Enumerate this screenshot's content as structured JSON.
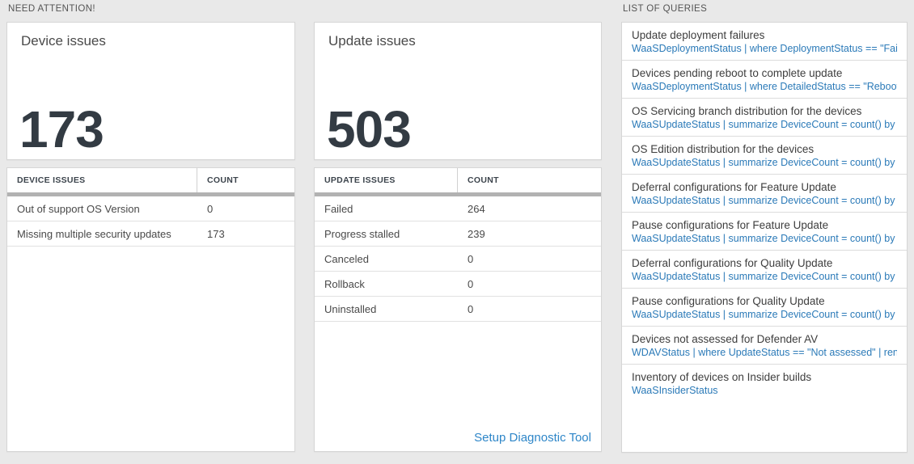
{
  "colors": {
    "setup_link": "#2e86c8",
    "query_link": "#2b7ab8",
    "big_number": "#333b43"
  },
  "need_attention": {
    "heading": "NEED ATTENTION!",
    "device_card": {
      "title": "Device issues",
      "count": "173"
    },
    "device_table": {
      "headers": [
        "DEVICE ISSUES",
        "COUNT"
      ],
      "rows": [
        {
          "label": "Out of support OS Version",
          "count": "0"
        },
        {
          "label": "Missing multiple security updates",
          "count": "173"
        }
      ]
    },
    "update_card": {
      "title": "Update issues",
      "count": "503"
    },
    "update_table": {
      "headers": [
        "UPDATE ISSUES",
        "COUNT"
      ],
      "rows": [
        {
          "label": "Failed",
          "count": "264"
        },
        {
          "label": "Progress stalled",
          "count": "239"
        },
        {
          "label": "Canceled",
          "count": "0"
        },
        {
          "label": "Rollback",
          "count": "0"
        },
        {
          "label": "Uninstalled",
          "count": "0"
        }
      ],
      "footer_link": "Setup Diagnostic Tool"
    }
  },
  "queries": {
    "heading": "LIST OF QUERIES",
    "items": [
      {
        "title": "Update deployment failures",
        "query": "WaaSDeploymentStatus | where DeploymentStatus == \"Failed\" |..."
      },
      {
        "title": "Devices pending reboot to complete update",
        "query": "WaaSDeploymentStatus | where DetailedStatus == \"Reboot pend..."
      },
      {
        "title": "OS Servicing branch distribution for the devices",
        "query": "WaaSUpdateStatus | summarize DeviceCount = count() by OSSer..."
      },
      {
        "title": "OS Edition distribution for the devices",
        "query": "WaaSUpdateStatus | summarize DeviceCount = count() by OSEdit..."
      },
      {
        "title": "Deferral configurations for Feature Update",
        "query": "WaaSUpdateStatus | summarize DeviceCount = count() by Featur..."
      },
      {
        "title": "Pause configurations for Feature Update",
        "query": "WaaSUpdateStatus | summarize DeviceCount = count() by Featur..."
      },
      {
        "title": "Deferral configurations for Quality Update",
        "query": "WaaSUpdateStatus | summarize DeviceCount = count() by Qualit..."
      },
      {
        "title": "Pause configurations for Quality Update",
        "query": "WaaSUpdateStatus | summarize DeviceCount = count() by Qualit..."
      },
      {
        "title": "Devices not assessed for Defender AV",
        "query": "WDAVStatus | where UpdateStatus == \"Not assessed\" | render ta..."
      },
      {
        "title": "Inventory of devices on Insider builds",
        "query": "WaaSInsiderStatus"
      }
    ]
  }
}
